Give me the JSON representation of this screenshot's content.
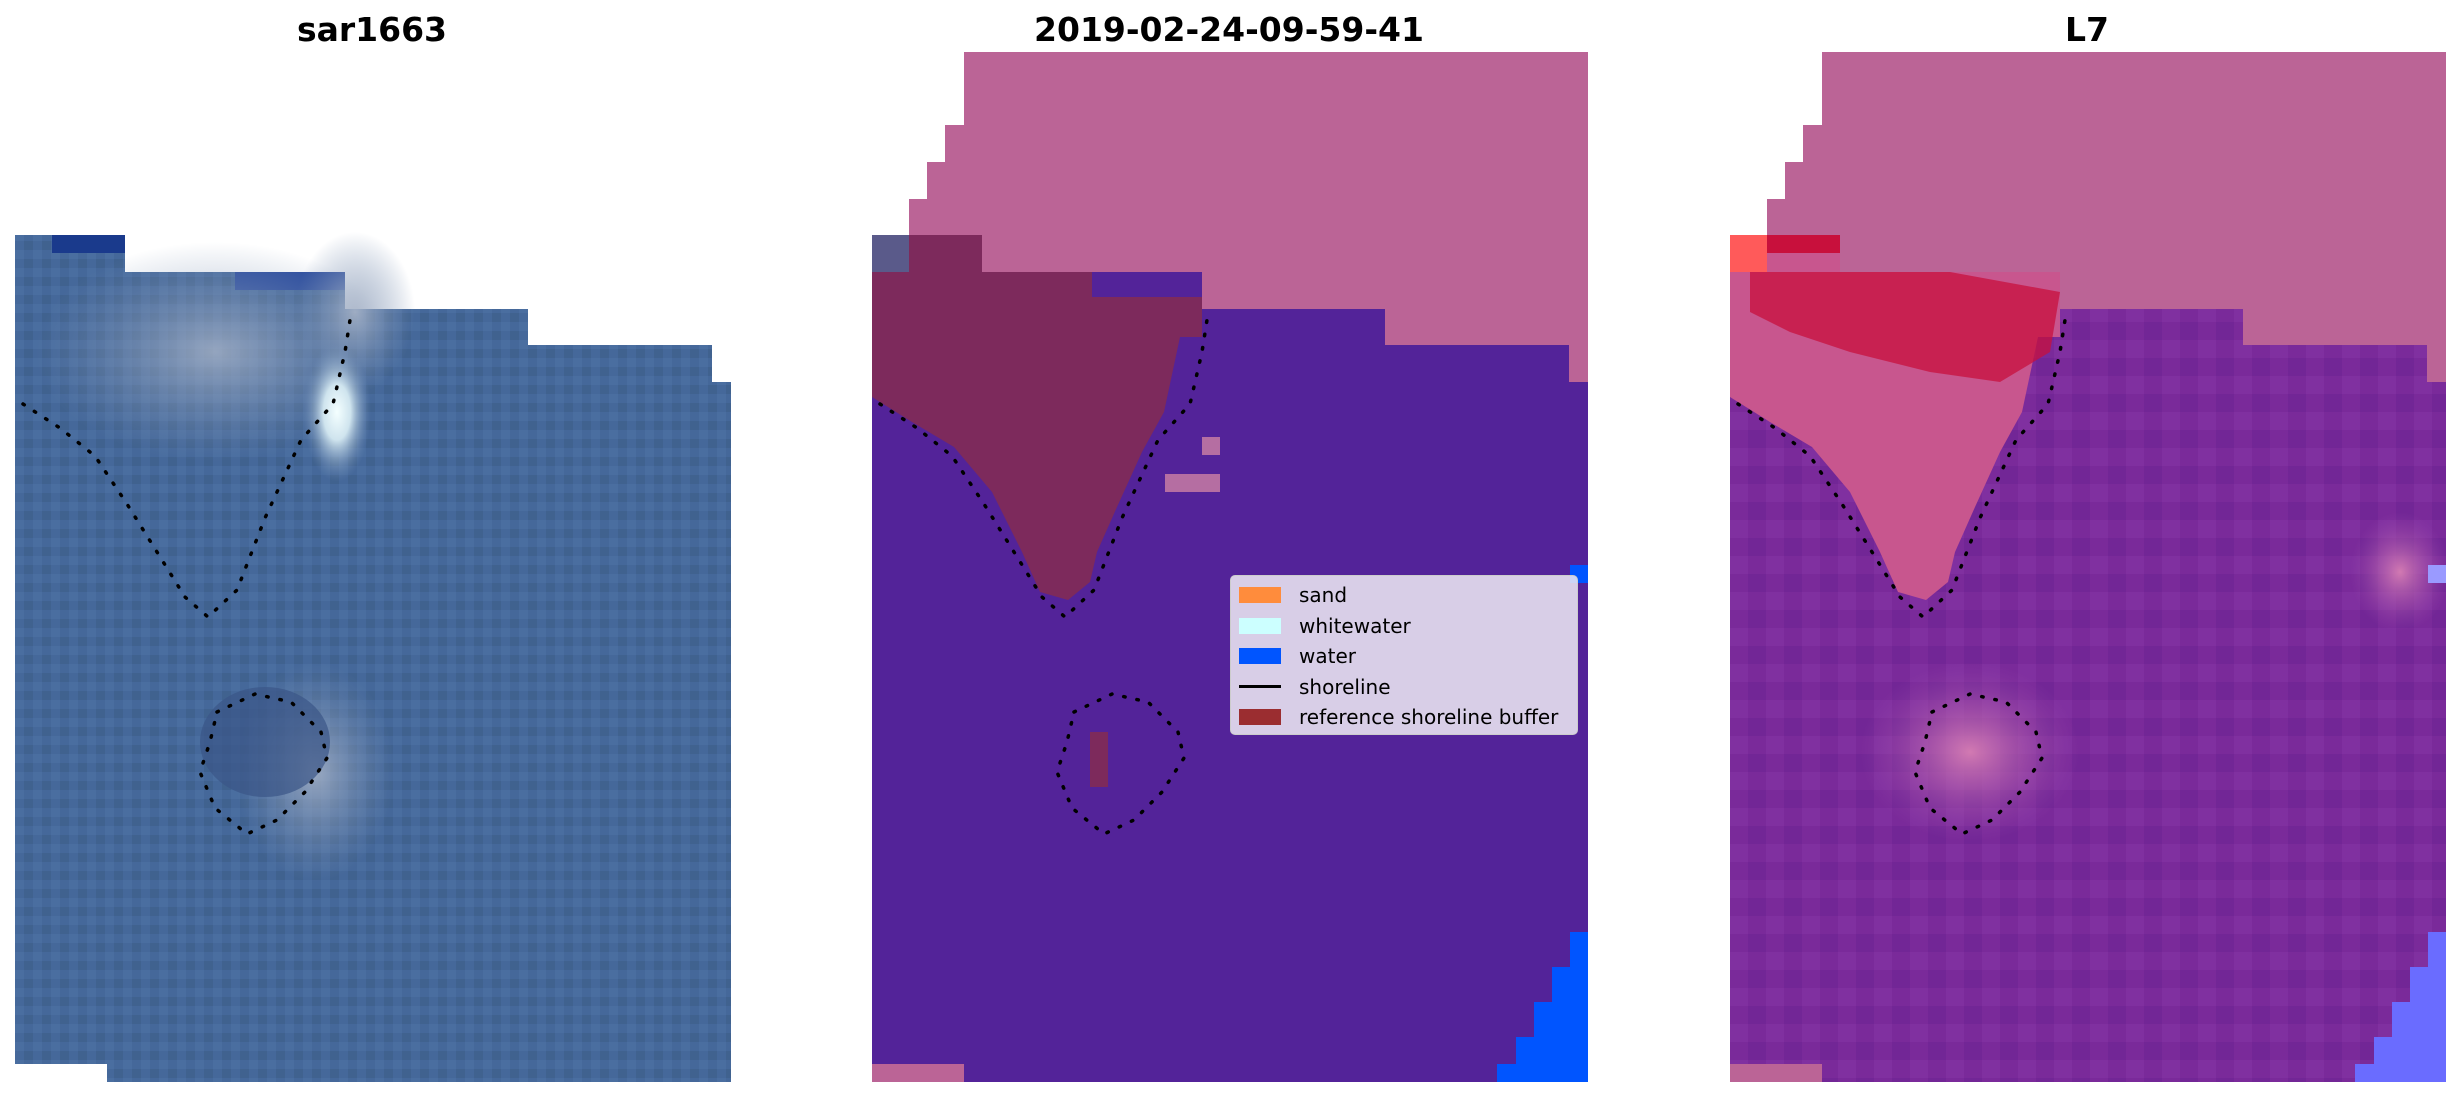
{
  "panels": [
    {
      "title": "sar1663",
      "name": "rgb-image-panel"
    },
    {
      "title": "2019-02-24-09-59-41",
      "name": "classification-panel"
    },
    {
      "title": "L7",
      "name": "index-panel"
    }
  ],
  "legend": {
    "items": [
      {
        "label": "sand",
        "color": "#ff8c3c",
        "kind": "patch"
      },
      {
        "label": "whitewater",
        "color": "#ccffff",
        "kind": "patch"
      },
      {
        "label": "water",
        "color": "#0055ff",
        "kind": "patch"
      },
      {
        "label": "shoreline",
        "color": "#000000",
        "kind": "line"
      },
      {
        "label": "reference shoreline buffer",
        "color": "#9b2d30",
        "kind": "patch"
      }
    ]
  },
  "colors": {
    "rgb_base": "#45689a",
    "rgb_bright": "#dff3f8",
    "rgb_dark_blue": "#1a3a8c",
    "class_water": "#532399",
    "class_nodata": "#bb6496",
    "class_buffer": "#7d2a5c",
    "class_water_blue": "#0055ff",
    "index_base": "#7a2a9a",
    "index_red": "#c8103c",
    "index_pink": "#c8568e",
    "index_nodata": "#bb6496",
    "index_blue": "#6a6cff",
    "shoreline": "#000000"
  }
}
